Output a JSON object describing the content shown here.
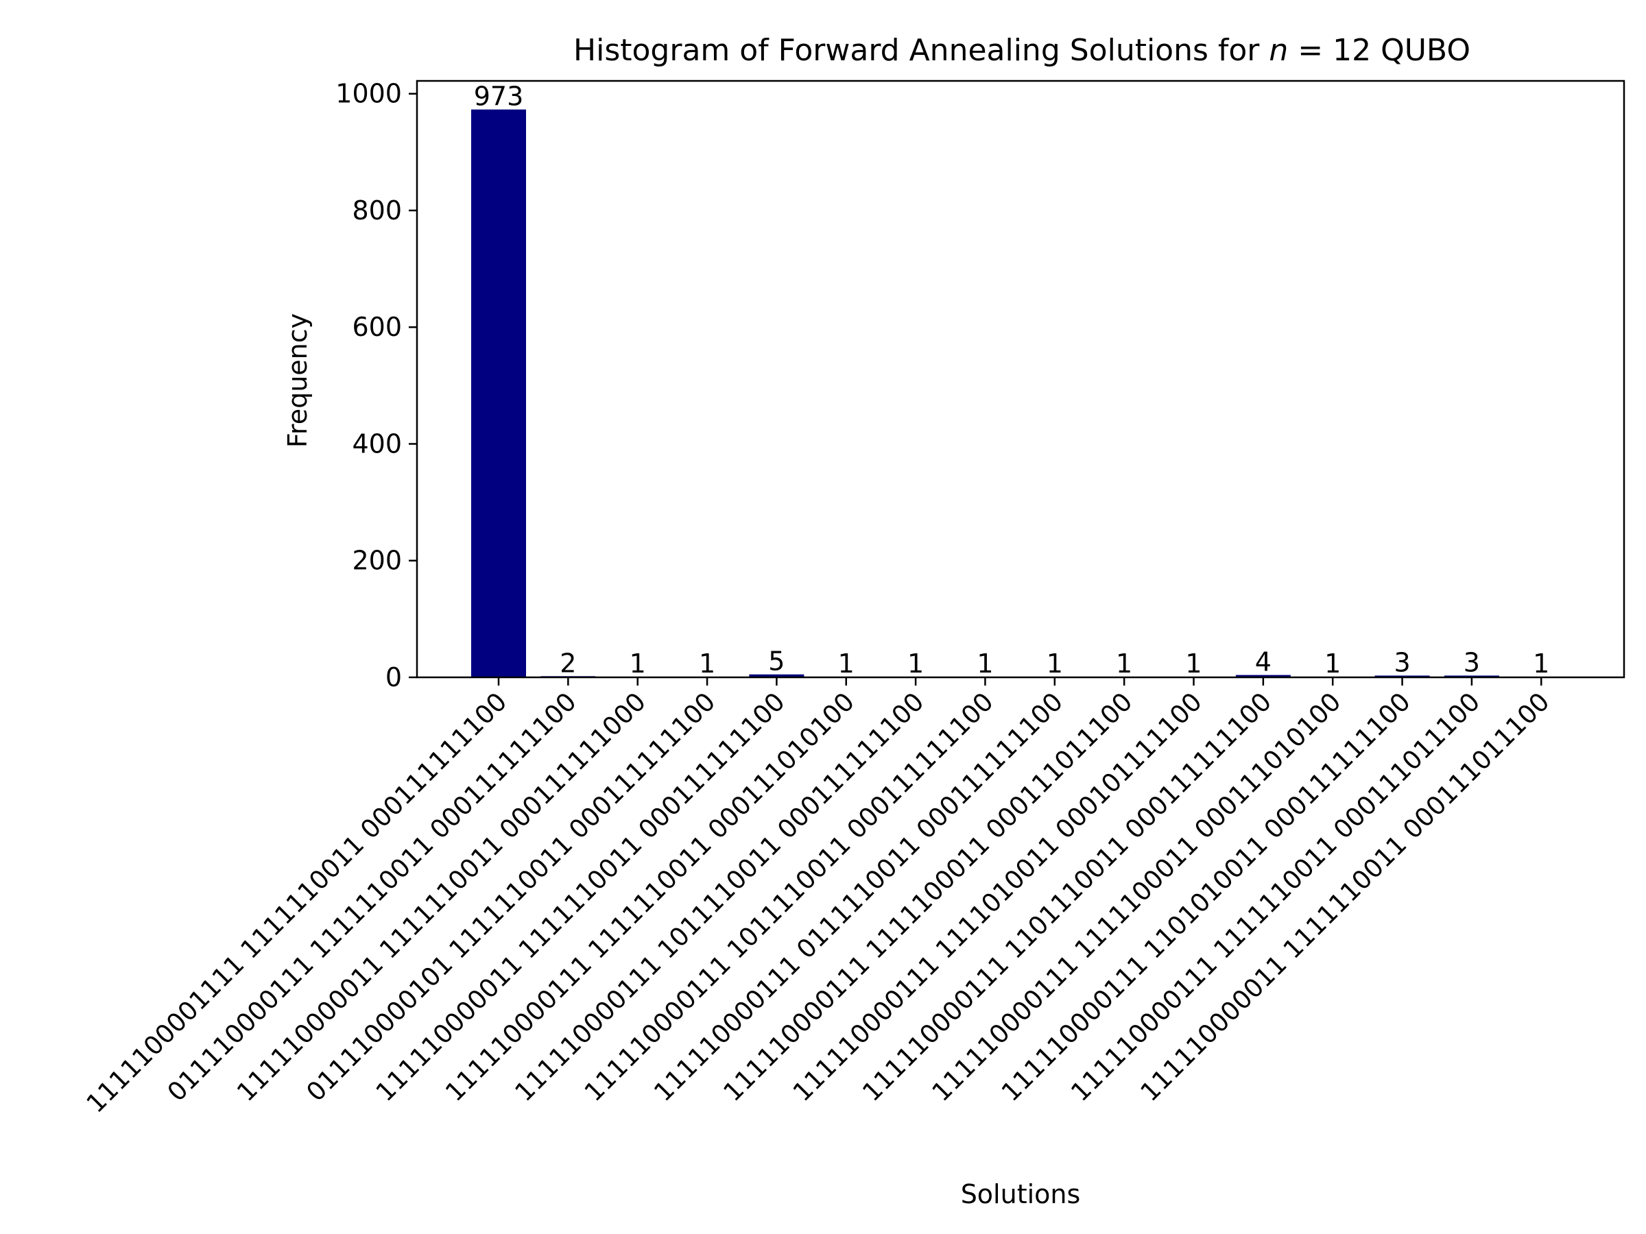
{
  "chart_data": {
    "type": "bar",
    "title_prefix": "Histogram of Forward Annealing Solutions for ",
    "title_var": "n",
    "title_eq": " = 12 QUBO",
    "xlabel": "Solutions",
    "ylabel": "Frequency",
    "ylim": [
      0,
      1022
    ],
    "yticks": [
      0,
      200,
      400,
      600,
      800,
      1000
    ],
    "grid": false,
    "bar_color": "#000080",
    "categories": [
      "1111100001111 1111110011 000111111100",
      "011110000111 1111110011 000111111100",
      "111110000011 1111110011 000111111000",
      "011110000101 1111110011 000111111100",
      "111110000011 1111110011 000111111100",
      "111110000111 1111110011 000111010100",
      "111110000111 1011110011 000111111100",
      "111110000111 1011110011 000111111100",
      "111110000111 0111110011 000111111100",
      "111110000111 1111100011 000111011100",
      "111110000111 1111010011 000101111100",
      "111110000111 1101110011 000111111100",
      "111110000111 1111100011 000111010100",
      "111110000111 1101010011 000111111100",
      "111110000111 1111110011 000111011100",
      "111110000011 1111110011 000111011100"
    ],
    "values": [
      973,
      2,
      1,
      1,
      5,
      1,
      1,
      1,
      1,
      1,
      1,
      4,
      1,
      3,
      3,
      1
    ]
  }
}
